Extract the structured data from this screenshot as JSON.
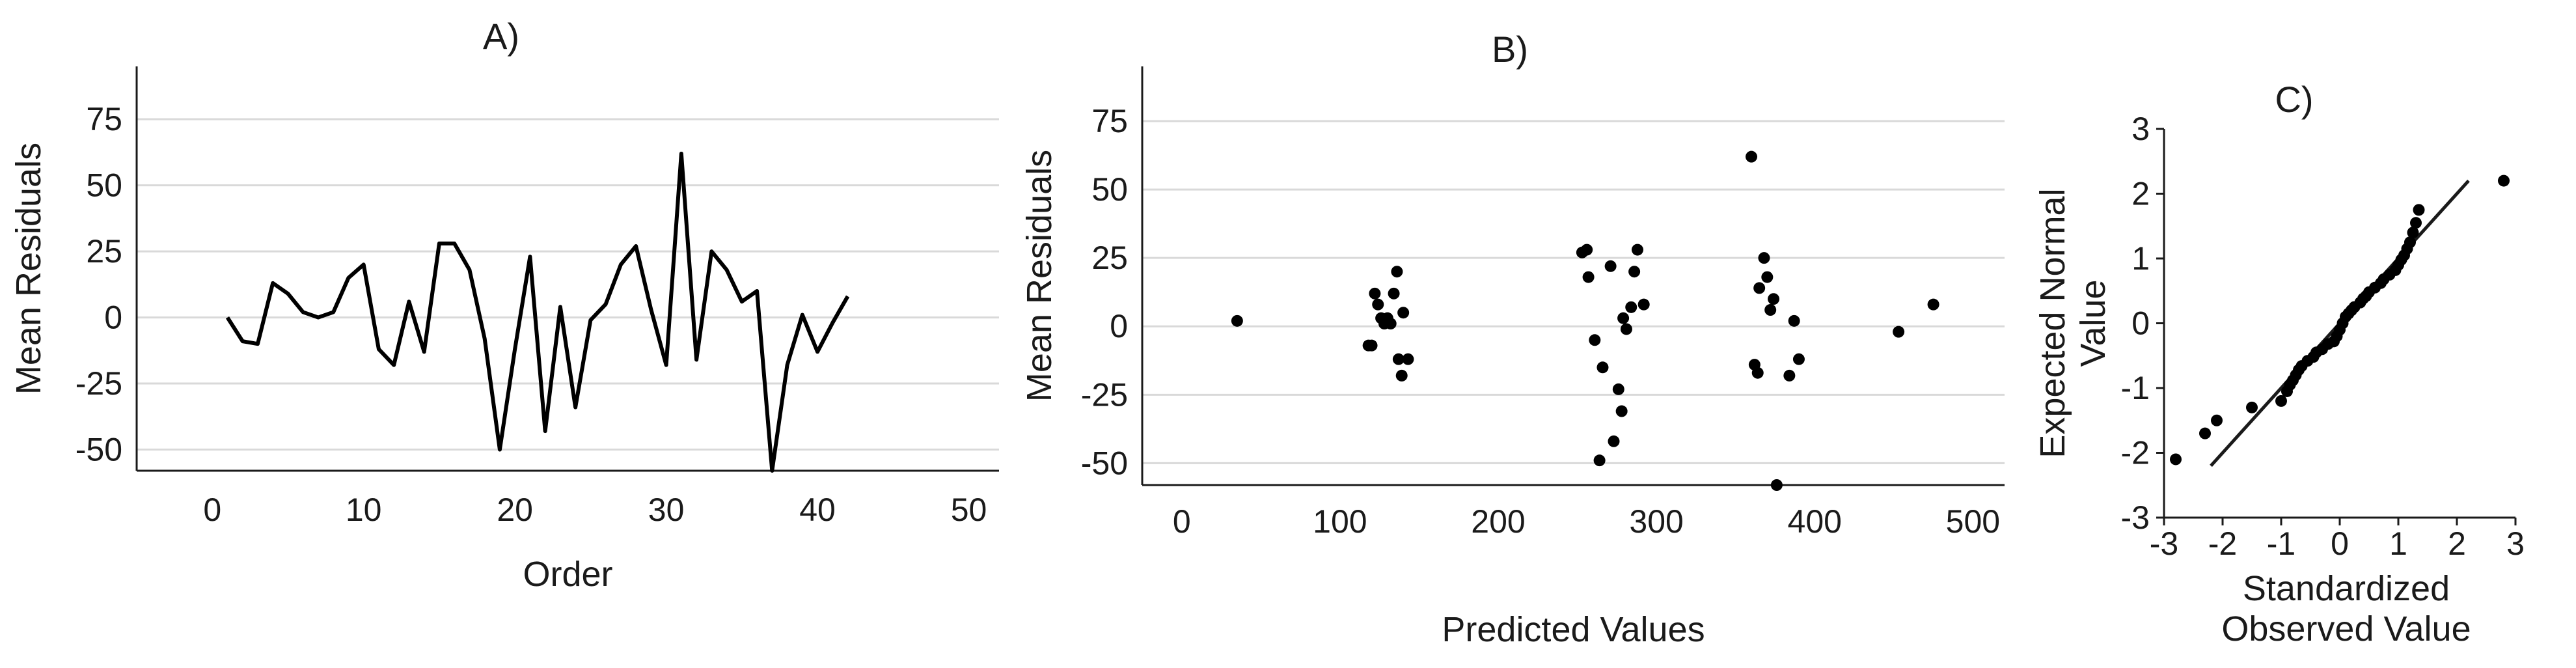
{
  "chart_data": [
    {
      "type": "line",
      "title": "A)",
      "xlabel": "Order",
      "ylabel": "Mean Residuals",
      "xlim": [
        -5,
        52
      ],
      "ylim": [
        -58,
        95
      ],
      "xticks": [
        "0",
        "10",
        "20",
        "30",
        "40",
        "50"
      ],
      "yticks": [
        "75",
        "50",
        "25",
        "0",
        "-25",
        "-50"
      ],
      "grid": "horizontal",
      "x": [
        1,
        2,
        3,
        4,
        5,
        6,
        7,
        8,
        9,
        10,
        11,
        12,
        13,
        14,
        15,
        16,
        17,
        18,
        19,
        20,
        21,
        22,
        23,
        24,
        25,
        26,
        27,
        28,
        29,
        30,
        31,
        32,
        33,
        34,
        35,
        36,
        37,
        38,
        39,
        40,
        41,
        42
      ],
      "values": [
        0,
        -9,
        -10,
        13,
        9,
        2,
        0,
        2,
        15,
        20,
        -12,
        -18,
        6,
        -13,
        28,
        28,
        18,
        -8,
        -50,
        -12,
        23,
        -43,
        4,
        -34,
        -1,
        5,
        20,
        27,
        3,
        -18,
        62,
        -16,
        25,
        18,
        6,
        10,
        -58,
        -18,
        1,
        -13,
        -2,
        8
      ],
      "color": "#000000"
    },
    {
      "type": "scatter",
      "title": "B)",
      "xlabel": "Predicted Values",
      "ylabel": "Mean Residuals",
      "xlim": [
        -25,
        520
      ],
      "ylim": [
        -58,
        95
      ],
      "xticks": [
        "0",
        "100",
        "200",
        "300",
        "400",
        "500"
      ],
      "yticks": [
        "75",
        "50",
        "25",
        "0",
        "-25",
        "-50"
      ],
      "grid": "horizontal",
      "points": [
        [
          35,
          2
        ],
        [
          118,
          -7
        ],
        [
          120,
          -7
        ],
        [
          122,
          12
        ],
        [
          124,
          8
        ],
        [
          126,
          3
        ],
        [
          128,
          1
        ],
        [
          130,
          3
        ],
        [
          132,
          1
        ],
        [
          134,
          12
        ],
        [
          136,
          20
        ],
        [
          137,
          -12
        ],
        [
          139,
          -18
        ],
        [
          140,
          5
        ],
        [
          143,
          -12
        ],
        [
          253,
          27
        ],
        [
          256,
          28
        ],
        [
          257,
          18
        ],
        [
          261,
          -5
        ],
        [
          264,
          -49
        ],
        [
          266,
          -15
        ],
        [
          271,
          22
        ],
        [
          273,
          -42
        ],
        [
          276,
          -23
        ],
        [
          278,
          -31
        ],
        [
          279,
          3
        ],
        [
          281,
          -1
        ],
        [
          284,
          7
        ],
        [
          286,
          20
        ],
        [
          288,
          28
        ],
        [
          292,
          8
        ],
        [
          360,
          62
        ],
        [
          362,
          -14
        ],
        [
          364,
          -17
        ],
        [
          365,
          14
        ],
        [
          368,
          25
        ],
        [
          370,
          18
        ],
        [
          372,
          6
        ],
        [
          374,
          10
        ],
        [
          376,
          -58
        ],
        [
          384,
          -18
        ],
        [
          387,
          2
        ],
        [
          390,
          -12
        ],
        [
          453,
          -2
        ],
        [
          475,
          8
        ]
      ],
      "color": "#000000"
    },
    {
      "type": "scatter",
      "title": "C)",
      "xlabel": "Standardized Observed Value",
      "xlabel_lines": [
        "Standardized",
        "Observed Value"
      ],
      "ylabel": "Expected Normal Value",
      "ylabel_lines": [
        "Expected Normal",
        "Value"
      ],
      "xlim": [
        -3,
        3
      ],
      "ylim": [
        -3,
        3
      ],
      "xticks": [
        "-3",
        "-2",
        "-1",
        "0",
        "1",
        "2",
        "3"
      ],
      "yticks": [
        "3",
        "2",
        "1",
        "0",
        "-1",
        "-2",
        "-3"
      ],
      "grid": "none",
      "reference_line": [
        [
          -2.2,
          -2.2
        ],
        [
          2.2,
          2.2
        ]
      ],
      "points": [
        [
          -2.8,
          -2.1
        ],
        [
          -2.3,
          -1.7
        ],
        [
          -2.1,
          -1.5
        ],
        [
          -1.5,
          -1.3
        ],
        [
          -1.0,
          -1.2
        ],
        [
          -0.9,
          -1.05
        ],
        [
          -0.85,
          -0.95
        ],
        [
          -0.8,
          -0.88
        ],
        [
          -0.75,
          -0.8
        ],
        [
          -0.7,
          -0.72
        ],
        [
          -0.65,
          -0.66
        ],
        [
          -0.55,
          -0.58
        ],
        [
          -0.45,
          -0.52
        ],
        [
          -0.4,
          -0.45
        ],
        [
          -0.3,
          -0.4
        ],
        [
          -0.2,
          -0.32
        ],
        [
          -0.1,
          -0.28
        ],
        [
          -0.05,
          -0.2
        ],
        [
          0.0,
          -0.1
        ],
        [
          0.05,
          0.0
        ],
        [
          0.1,
          0.1
        ],
        [
          0.15,
          0.15
        ],
        [
          0.2,
          0.2
        ],
        [
          0.25,
          0.25
        ],
        [
          0.35,
          0.32
        ],
        [
          0.4,
          0.38
        ],
        [
          0.45,
          0.42
        ],
        [
          0.5,
          0.48
        ],
        [
          0.6,
          0.55
        ],
        [
          0.7,
          0.62
        ],
        [
          0.75,
          0.68
        ],
        [
          0.85,
          0.75
        ],
        [
          0.95,
          0.82
        ],
        [
          1.0,
          0.9
        ],
        [
          1.05,
          0.98
        ],
        [
          1.1,
          1.05
        ],
        [
          1.15,
          1.15
        ],
        [
          1.2,
          1.25
        ],
        [
          1.25,
          1.4
        ],
        [
          1.3,
          1.55
        ],
        [
          1.35,
          1.75
        ],
        [
          2.8,
          2.2
        ]
      ],
      "color": "#000000"
    }
  ]
}
